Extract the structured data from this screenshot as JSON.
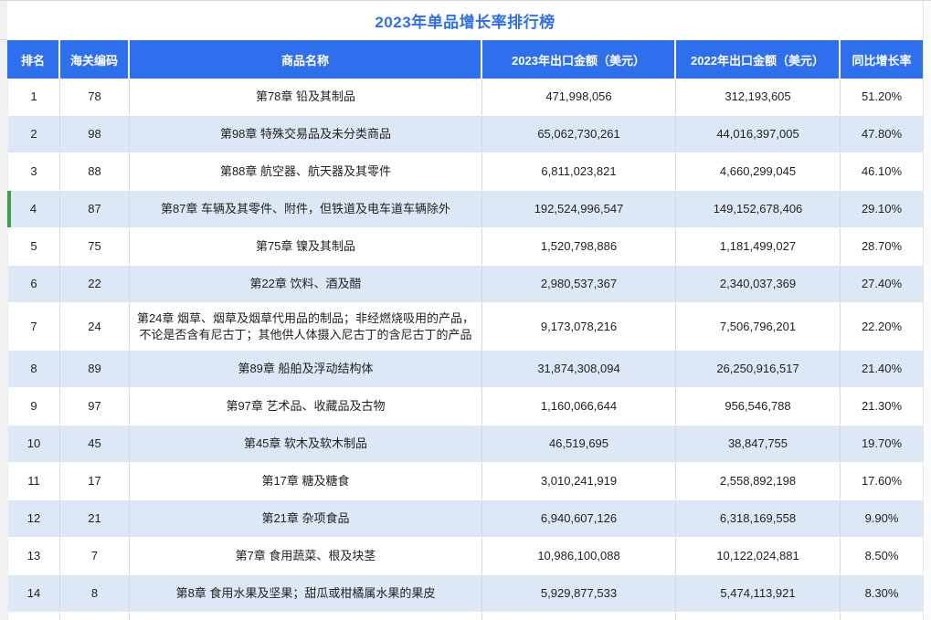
{
  "title": "2023年单品增长率排行榜",
  "colors": {
    "accent_blue": "#2d6fec",
    "header_bg": "#2d6fec",
    "header_text": "#ffffff",
    "row_alt_bg": "#dce8f5",
    "column_divider": "#c9dbee",
    "highlight_green": "#3c9e47",
    "body_text": "#1f1f1f"
  },
  "table": {
    "columns": [
      "排名",
      "海关编码",
      "商品名称",
      "2023年出口金额（美元）",
      "2022年出口金额（美元）",
      "同比增长率"
    ],
    "highlighted_rank": "4",
    "rows": [
      {
        "rank": "1",
        "code": "78",
        "name": "第78章  铅及其制品",
        "amount_2023": "471,998,056",
        "amount_2022": "312,193,605",
        "growth": "51.20%"
      },
      {
        "rank": "2",
        "code": "98",
        "name": "第98章  特殊交易品及未分类商品",
        "amount_2023": "65,062,730,261",
        "amount_2022": "44,016,397,005",
        "growth": "47.80%"
      },
      {
        "rank": "3",
        "code": "88",
        "name": "第88章  航空器、航天器及其零件",
        "amount_2023": "6,811,023,821",
        "amount_2022": "4,660,299,045",
        "growth": "46.10%"
      },
      {
        "rank": "4",
        "code": "87",
        "name": "第87章  车辆及其零件、附件，但铁道及电车道车辆除外",
        "amount_2023": "192,524,996,547",
        "amount_2022": "149,152,678,406",
        "growth": "29.10%"
      },
      {
        "rank": "5",
        "code": "75",
        "name": "第75章  镍及其制品",
        "amount_2023": "1,520,798,886",
        "amount_2022": "1,181,499,027",
        "growth": "28.70%"
      },
      {
        "rank": "6",
        "code": "22",
        "name": "第22章  饮料、酒及醋",
        "amount_2023": "2,980,537,367",
        "amount_2022": "2,340,037,369",
        "growth": "27.40%"
      },
      {
        "rank": "7",
        "code": "24",
        "name": "第24章  烟草、烟草及烟草代用品的制品；非经燃烧吸用的产品，不论是否含有尼古丁；其他供人体摄入尼古丁的含尼古丁的产品",
        "amount_2023": "9,173,078,216",
        "amount_2022": "7,506,796,201",
        "growth": "22.20%"
      },
      {
        "rank": "8",
        "code": "89",
        "name": "第89章  船舶及浮动结构体",
        "amount_2023": "31,874,308,094",
        "amount_2022": "26,250,916,517",
        "growth": "21.40%"
      },
      {
        "rank": "9",
        "code": "97",
        "name": "第97章  艺术品、收藏品及古物",
        "amount_2023": "1,160,066,644",
        "amount_2022": "956,546,788",
        "growth": "21.30%"
      },
      {
        "rank": "10",
        "code": "45",
        "name": "第45章  软木及软木制品",
        "amount_2023": "46,519,695",
        "amount_2022": "38,847,755",
        "growth": "19.70%"
      },
      {
        "rank": "11",
        "code": "17",
        "name": "第17章  糖及糖食",
        "amount_2023": "3,010,241,919",
        "amount_2022": "2,558,892,198",
        "growth": "17.60%"
      },
      {
        "rank": "12",
        "code": "21",
        "name": "第21章  杂项食品",
        "amount_2023": "6,940,607,126",
        "amount_2022": "6,318,169,558",
        "growth": "9.90%"
      },
      {
        "rank": "13",
        "code": "7",
        "name": "第7章  食用蔬菜、根及块茎",
        "amount_2023": "10,986,100,088",
        "amount_2022": "10,122,024,881",
        "growth": "8.50%"
      },
      {
        "rank": "14",
        "code": "8",
        "name": "第8章  食用水果及坚果；甜瓜或柑橘属水果的果皮",
        "amount_2023": "5,929,877,533",
        "amount_2022": "5,474,113,921",
        "growth": "8.30%"
      }
    ]
  }
}
